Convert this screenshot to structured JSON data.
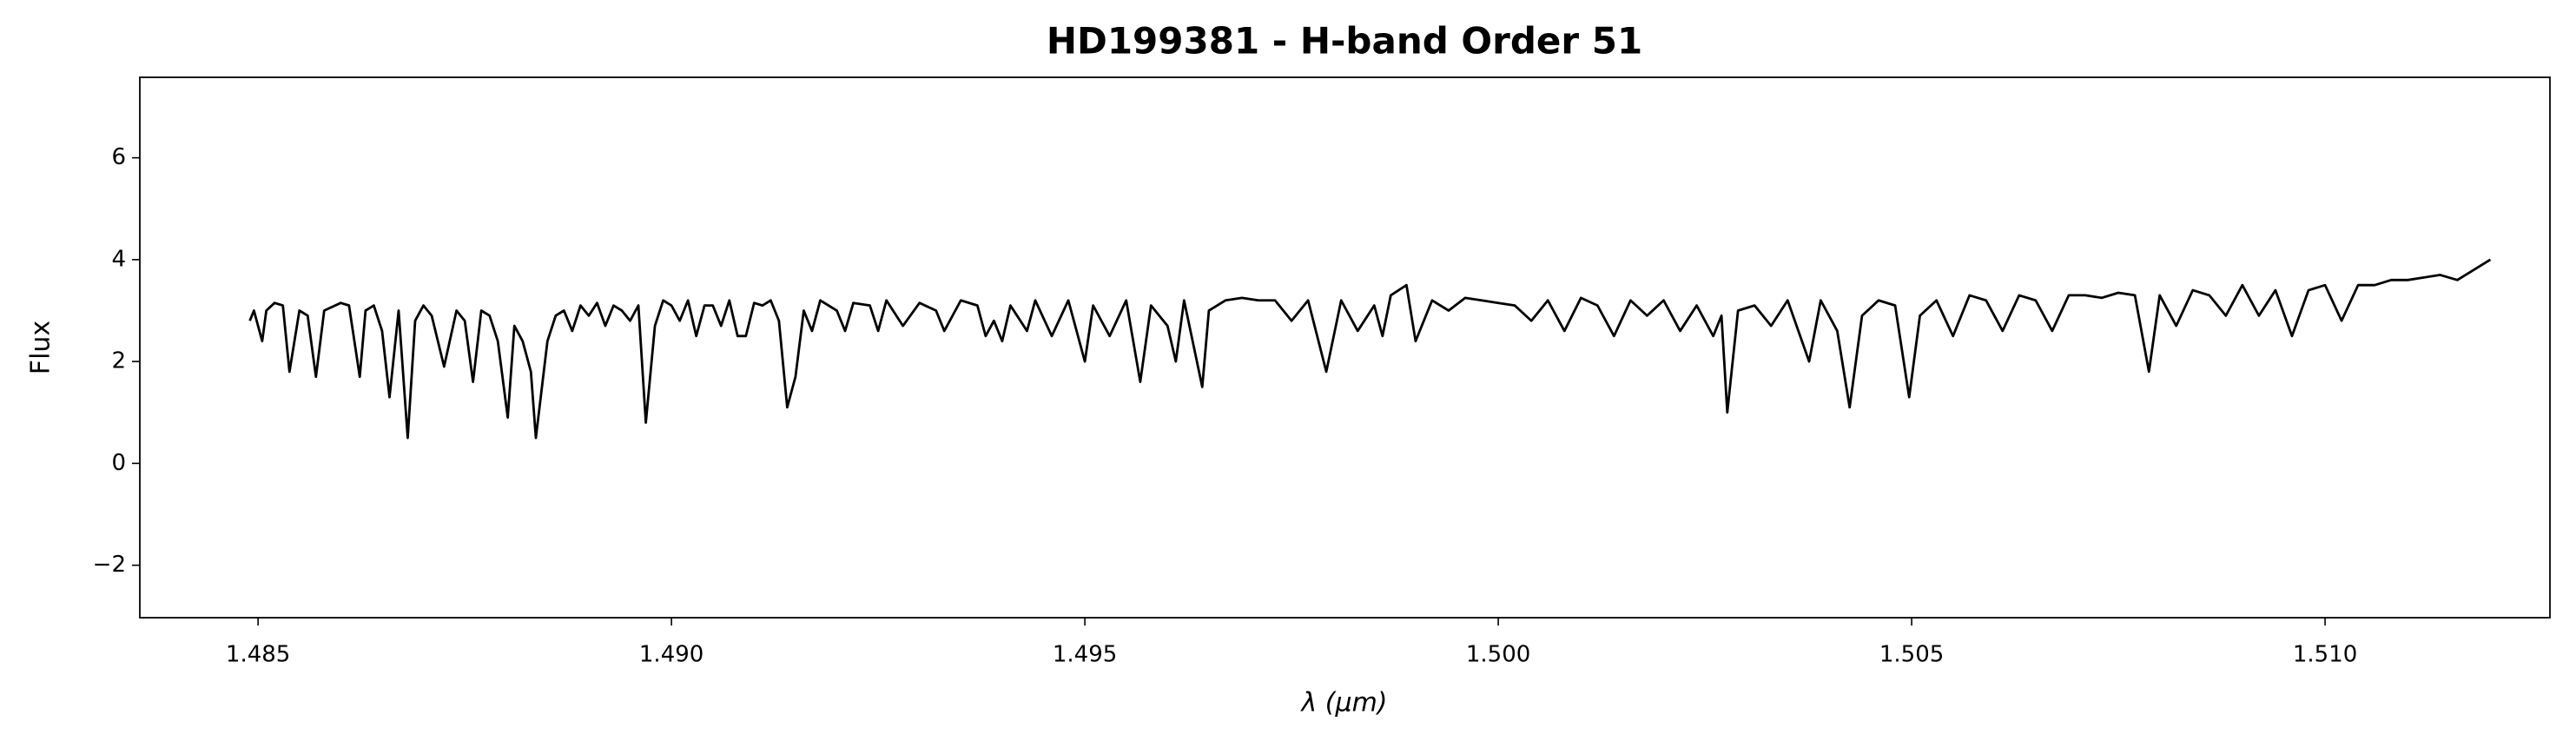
{
  "chart_data": {
    "type": "line",
    "title": "HD199381 - H-band Order 51",
    "xlabel": "λ (μm)",
    "ylabel": "Flux",
    "color": "#000000",
    "grid": false,
    "xlim": [
      1.48357,
      1.51272
    ],
    "ylim": [
      -3.03,
      7.58
    ],
    "xticks": [
      1.485,
      {
        "value": 1.49,
        "label": "1.490"
      },
      1.495,
      {
        "value": 1.5,
        "label": "1.500"
      },
      1.505,
      {
        "value": 1.51,
        "label": "1.510"
      }
    ],
    "yticks": [
      {
        "value": -2,
        "label": "−2"
      },
      0,
      2,
      4,
      6
    ],
    "x": [
      1.4849,
      1.48495,
      1.485,
      1.48505,
      1.4851,
      1.4852,
      1.4853,
      1.48538,
      1.4855,
      1.4856,
      1.4857,
      1.4858,
      1.486,
      1.4861,
      1.48623,
      1.4863,
      1.4864,
      1.4865,
      1.48659,
      1.4867,
      1.48681,
      1.4869,
      1.487,
      1.4871,
      1.48725,
      1.4874,
      1.4875,
      1.4876,
      1.4877,
      1.4878,
      1.4879,
      1.48802,
      1.4881,
      1.4882,
      1.4883,
      1.48836,
      1.4885,
      1.4886,
      1.4887,
      1.4888,
      1.4889,
      1.489,
      1.4891,
      1.4892,
      1.4893,
      1.4894,
      1.4895,
      1.4896,
      1.48969,
      1.4898,
      1.4899,
      1.49,
      1.4901,
      1.4902,
      1.4903,
      1.4904,
      1.4905,
      1.4906,
      1.4907,
      1.4908,
      1.4909,
      1.491,
      1.4911,
      1.4912,
      1.4913,
      1.4914,
      1.4915,
      1.4916,
      1.4917,
      1.4918,
      1.492,
      1.4921,
      1.4922,
      1.4924,
      1.4925,
      1.4926,
      1.4928,
      1.493,
      1.4932,
      1.4933,
      1.4935,
      1.4937,
      1.4938,
      1.4939,
      1.494,
      1.4941,
      1.4943,
      1.4944,
      1.4946,
      1.4948,
      1.495,
      1.4951,
      1.4953,
      1.4955,
      1.49567,
      1.4958,
      1.496,
      1.4961,
      1.4962,
      1.49642,
      1.4965,
      1.4967,
      1.4969,
      1.4971,
      1.4973,
      1.4975,
      1.4977,
      1.49792,
      1.4981,
      1.4983,
      1.4985,
      1.4986,
      1.4987,
      1.49889,
      1.499,
      1.4992,
      1.4994,
      1.4996,
      1.4998,
      1.5,
      1.5002,
      1.5004,
      1.5006,
      1.5008,
      1.501,
      1.5012,
      1.5014,
      1.5016,
      1.5018,
      1.502,
      1.5022,
      1.5024,
      1.5026,
      1.5027,
      1.50277,
      1.5029,
      1.5031,
      1.5033,
      1.5035,
      1.50376,
      1.5039,
      1.5041,
      1.50425,
      1.5044,
      1.5046,
      1.5048,
      1.50497,
      1.5051,
      1.5053,
      1.5055,
      1.5057,
      1.5059,
      1.5061,
      1.5063,
      1.5065,
      1.5067,
      1.5069,
      1.5071,
      1.5073,
      1.5075,
      1.5077,
      1.50787,
      1.508,
      1.5082,
      1.5084,
      1.5086,
      1.5088,
      1.509,
      1.5092,
      1.5094,
      1.5096,
      1.5098,
      1.51,
      1.5102,
      1.5104,
      1.5106,
      1.5108,
      1.511,
      1.51139,
      1.5116,
      1.5118,
      1.512
    ],
    "values": [
      2.8,
      3.0,
      2.7,
      2.4,
      3.0,
      3.15,
      3.1,
      1.8,
      3.0,
      2.9,
      1.7,
      3.0,
      3.15,
      3.1,
      1.7,
      3.0,
      3.1,
      2.6,
      1.3,
      3.0,
      0.5,
      2.8,
      3.1,
      2.9,
      1.9,
      3.0,
      2.8,
      1.6,
      3.0,
      2.9,
      2.4,
      0.9,
      2.7,
      2.4,
      1.8,
      0.5,
      2.4,
      2.9,
      3.0,
      2.6,
      3.1,
      2.9,
      3.15,
      2.7,
      3.1,
      3.0,
      2.8,
      3.1,
      0.8,
      2.7,
      3.2,
      3.1,
      2.8,
      3.2,
      2.5,
      3.1,
      3.1,
      2.7,
      3.2,
      2.5,
      2.5,
      3.15,
      3.1,
      3.2,
      2.8,
      1.1,
      1.7,
      3.0,
      2.6,
      3.2,
      3.0,
      2.6,
      3.15,
      3.1,
      2.6,
      3.2,
      2.7,
      3.15,
      3.0,
      2.6,
      3.2,
      3.1,
      2.5,
      2.8,
      2.4,
      3.1,
      2.6,
      3.2,
      2.5,
      3.2,
      2.0,
      3.1,
      2.5,
      3.2,
      1.6,
      3.1,
      2.7,
      2.0,
      3.2,
      1.5,
      3.0,
      3.2,
      3.25,
      3.2,
      3.2,
      2.8,
      3.2,
      1.8,
      3.2,
      2.6,
      3.1,
      2.5,
      3.3,
      3.5,
      2.4,
      3.2,
      3.0,
      3.25,
      3.2,
      3.15,
      3.1,
      2.8,
      3.2,
      2.6,
      3.25,
      3.1,
      2.5,
      3.2,
      2.9,
      3.2,
      2.6,
      3.1,
      2.5,
      2.9,
      1.0,
      3.0,
      3.1,
      2.7,
      3.2,
      2.0,
      3.2,
      2.6,
      1.1,
      2.9,
      3.2,
      3.1,
      1.3,
      2.9,
      3.2,
      2.5,
      3.3,
      3.2,
      2.6,
      3.3,
      3.2,
      2.6,
      3.3,
      3.3,
      3.25,
      3.35,
      3.3,
      1.8,
      3.3,
      2.7,
      3.4,
      3.3,
      2.9,
      3.5,
      2.9,
      3.4,
      2.5,
      3.4,
      3.5,
      2.8,
      3.5,
      3.5,
      3.6,
      3.6,
      3.7,
      3.6,
      3.8,
      4.0
    ]
  }
}
